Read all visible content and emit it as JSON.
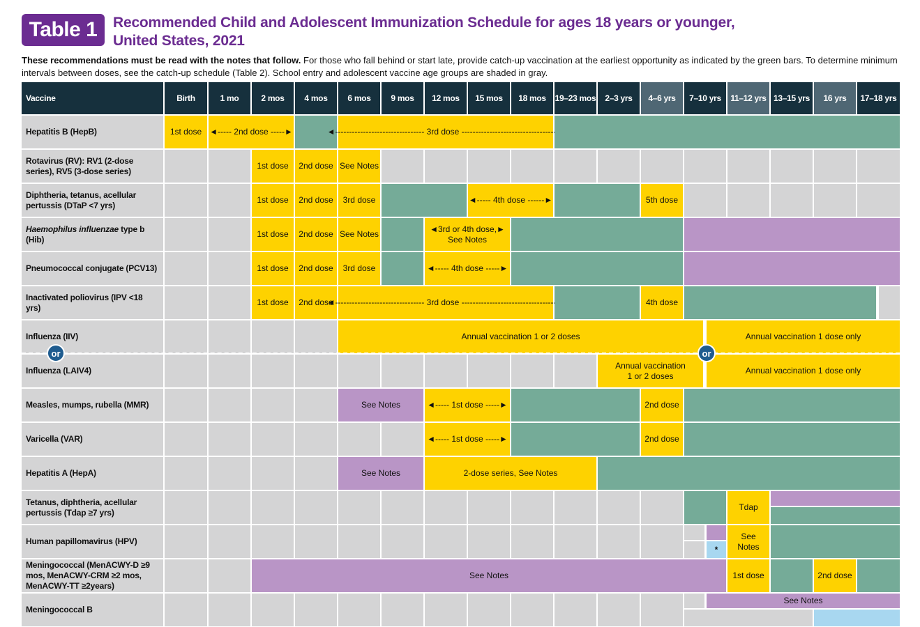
{
  "header": {
    "badge": "Table 1",
    "title_line1": "Recommended Child and Adolescent Immunization Schedule for ages 18 years or younger,",
    "title_line2": "United States, 2021",
    "intro_bold": "These recommendations must be read with the notes that follow.",
    "intro_rest": " For those who fall behind or start late, provide catch-up vaccination at the earliest opportunity as indicated by the green bars. To determine minimum intervals between doses, see the catch-up schedule (Table 2). School entry and adolescent vaccine age groups are shaded in gray."
  },
  "columns": [
    "Vaccine",
    "Birth",
    "1 mo",
    "2 mos",
    "4 mos",
    "6 mos",
    "9 mos",
    "12 mos",
    "15 mos",
    "18 mos",
    "19–23 mos",
    "2–3 yrs",
    "4–6 yrs",
    "7–10 yrs",
    "11–12 yrs",
    "13–15 yrs",
    "16 yrs",
    "17–18 yrs"
  ],
  "vaccines": [
    "Hepatitis B (HepB)",
    "Rotavirus (RV): RV1 (2-dose series), RV5 (3-dose series)",
    "Diphtheria, tetanus, acellular pertussis (DTaP <7 yrs)",
    "Haemophilus influenzae type b (Hib)",
    "Pneumococcal conjugate (PCV13)",
    "Inactivated poliovirus (IPV <18 yrs)",
    "Influenza (IIV)",
    "Influenza (LAIV4)",
    "Measles, mumps, rubella (MMR)",
    "Varicella (VAR)",
    "Hepatitis A (HepA)",
    "Tetanus, diphtheria, acellular pertussis (Tdap ≥7 yrs)",
    "Human papillomavirus (HPV)",
    "Meningococcal (MenACWY-D ≥9 mos, MenACWY-CRM ≥2 mos, MenACWY-TT ≥2years)",
    "Meningococcal B"
  ],
  "cells": {
    "first_dose": "1st dose",
    "second_dose": "2nd dose",
    "third_dose": "3rd dose",
    "fourth_dose": "4th dose",
    "fifth_dose": "5th dose",
    "see_notes": "See Notes",
    "hepb_2nd": "◄----- 2nd dose -----►",
    "hepb_3rd": "◄-------------------------------- 3rd dose ----------------------------------►",
    "dtap_4th": "◄----- 4th dose ------►",
    "hib_34": "◄3rd or 4th dose,►",
    "hib_34_sub": "See Notes",
    "pcv_4th": "◄----- 4th dose -----►",
    "ipv_3rd": "◄-------------------------------- 3rd dose ----------------------------------►",
    "flu_annual": "Annual vaccination 1 or 2 doses",
    "flu_one": "Annual vaccination 1 dose only",
    "laiv_annual_1": "Annual vaccination",
    "laiv_annual_2": "1 or 2 doses",
    "mmr_1st": "◄----- 1st dose -----►",
    "var_1st": "◄----- 1st dose -----►",
    "hepa_series": "2-dose series, See Notes",
    "tdap": "Tdap",
    "hpv_notes_1": "See",
    "hpv_notes_2": "Notes",
    "asterisk": "*",
    "or": "or"
  },
  "colors": {
    "header_dark": "#16303d",
    "header_gray": "#4f6774",
    "routine_yellow": "#fed200",
    "catchup_green": "#75ab98",
    "high_risk_purple": "#b995c6",
    "shared_decision_blue": "#a8d7f0",
    "not_routine_gray": "#d4d4d5",
    "title_purple": "#6b2c91"
  }
}
